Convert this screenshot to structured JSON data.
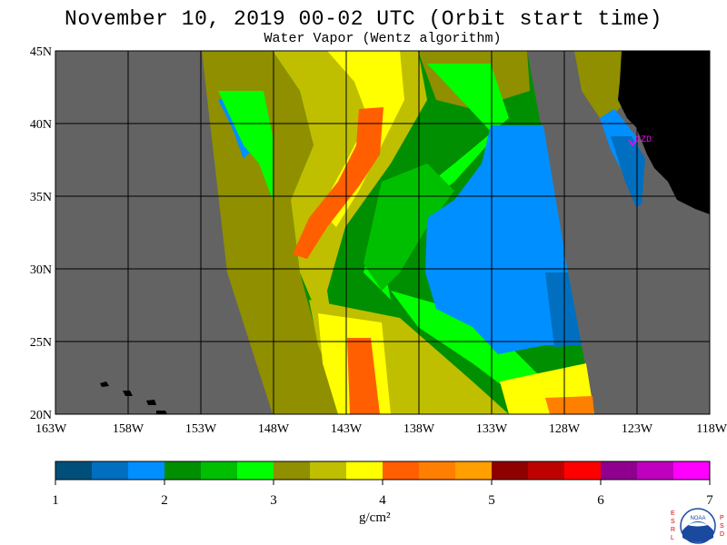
{
  "header": {
    "title": "November 10, 2019  00-02 UTC  (Orbit start time)",
    "subtitle": "Water Vapor (Wentz algorithm)"
  },
  "map": {
    "lat_labels": [
      "45N",
      "40N",
      "35N",
      "30N",
      "25N",
      "20N"
    ],
    "lon_labels": [
      "163W",
      "158W",
      "153W",
      "148W",
      "143W",
      "138W",
      "133W",
      "128W",
      "123W",
      "118W"
    ],
    "station_label": "CZD",
    "colors": {
      "no_data": "#636363",
      "land": "#000000",
      "grid": "#000000",
      "station": "#ff00ff"
    }
  },
  "colorbar": {
    "ticks": [
      "1",
      "2",
      "3",
      "4",
      "5",
      "6",
      "7"
    ],
    "units": "g/cm²",
    "colors": [
      "#004f7a",
      "#006fbf",
      "#008fff",
      "#008f00",
      "#00bf00",
      "#00ff00",
      "#8f8f00",
      "#bfbf00",
      "#ffff00",
      "#ff5f00",
      "#ff7f00",
      "#ff9f00",
      "#8f0000",
      "#bf0000",
      "#ff0000",
      "#8f008f",
      "#bf00bf",
      "#ff00ff"
    ]
  },
  "logo": {
    "left_letters": "ESRL",
    "right_letters": "PSD",
    "center_text": "NOAA"
  }
}
